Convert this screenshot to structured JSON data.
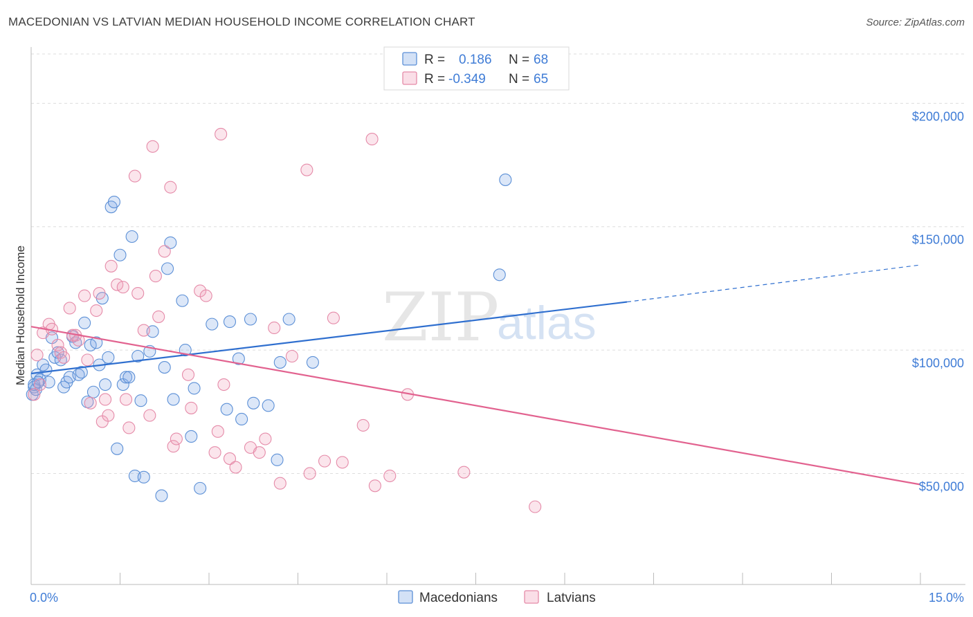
{
  "title": "MACEDONIAN VS LATVIAN MEDIAN HOUSEHOLD INCOME CORRELATION CHART",
  "source": "Source: ZipAtlas.com",
  "watermark": {
    "zip": "ZIP",
    "atlas": "atlas"
  },
  "colors": {
    "blue": "#5b8fd6",
    "blue_fill": "rgba(130,170,230,0.28)",
    "blue_line": "#2f6fcf",
    "pink": "#e58aa8",
    "pink_fill": "rgba(240,160,185,0.28)",
    "pink_line": "#e2628f",
    "tick": "#3f7cd6",
    "grid": "#dddddd"
  },
  "legend": {
    "rows": [
      {
        "r_label": "R =",
        "r_value": "0.186",
        "n_label": "N =",
        "n_value": "68"
      },
      {
        "r_label": "R =",
        "r_value": "-0.349",
        "n_label": "N =",
        "n_value": "65"
      }
    ]
  },
  "bottom_legend": [
    "Macedonians",
    "Latvians"
  ],
  "chart_data": {
    "type": "scatter",
    "title": "MACEDONIAN VS LATVIAN MEDIAN HOUSEHOLD INCOME CORRELATION CHART",
    "xlabel": "",
    "ylabel": "Median Household Income",
    "xlim": [
      0,
      15
    ],
    "ylim": [
      5000,
      220000
    ],
    "x_tick_labels": [
      "0.0%",
      "15.0%"
    ],
    "y_ticks": [
      {
        "value": 50000,
        "label": "$50,000"
      },
      {
        "value": 100000,
        "label": "$100,000"
      },
      {
        "value": 150000,
        "label": "$150,000"
      },
      {
        "value": 200000,
        "label": "$200,000"
      }
    ],
    "grid": "horizontal dashed",
    "legend_position": "top-center",
    "series": [
      {
        "name": "Macedonians",
        "r": 0.186,
        "n": 68,
        "trend": {
          "x0": 0.0,
          "y0": 90500,
          "x1": 10.05,
          "y1": 119500,
          "dashed_to_x": 15.0,
          "dashed_to_y": 134500
        },
        "points": [
          [
            0.05,
            85000
          ],
          [
            0.1,
            90000
          ],
          [
            0.15,
            88000
          ],
          [
            0.2,
            94000
          ],
          [
            0.25,
            92000
          ],
          [
            0.3,
            87000
          ],
          [
            0.35,
            105000
          ],
          [
            0.4,
            97000
          ],
          [
            0.45,
            99000
          ],
          [
            0.5,
            96000
          ],
          [
            0.55,
            85000
          ],
          [
            0.6,
            87000
          ],
          [
            0.65,
            89000
          ],
          [
            0.7,
            105500
          ],
          [
            0.75,
            103000
          ],
          [
            0.8,
            90000
          ],
          [
            0.85,
            91000
          ],
          [
            0.9,
            111000
          ],
          [
            0.95,
            79000
          ],
          [
            1.0,
            102000
          ],
          [
            1.05,
            83000
          ],
          [
            1.1,
            103000
          ],
          [
            1.15,
            94000
          ],
          [
            1.2,
            121000
          ],
          [
            1.25,
            86000
          ],
          [
            1.3,
            97000
          ],
          [
            1.35,
            158000
          ],
          [
            1.4,
            160000
          ],
          [
            1.45,
            60000
          ],
          [
            1.5,
            138500
          ],
          [
            1.55,
            86000
          ],
          [
            1.6,
            89000
          ],
          [
            1.65,
            89000
          ],
          [
            1.7,
            146000
          ],
          [
            1.75,
            49000
          ],
          [
            1.8,
            97500
          ],
          [
            1.85,
            79500
          ],
          [
            1.9,
            48500
          ],
          [
            2.0,
            99500
          ],
          [
            2.05,
            107500
          ],
          [
            2.2,
            41000
          ],
          [
            2.25,
            93000
          ],
          [
            2.3,
            133000
          ],
          [
            2.35,
            143500
          ],
          [
            2.4,
            80000
          ],
          [
            2.55,
            120000
          ],
          [
            2.6,
            100000
          ],
          [
            2.7,
            65000
          ],
          [
            2.75,
            84500
          ],
          [
            2.85,
            44000
          ],
          [
            3.05,
            110500
          ],
          [
            3.3,
            76000
          ],
          [
            3.35,
            111500
          ],
          [
            3.5,
            96500
          ],
          [
            3.55,
            72000
          ],
          [
            3.7,
            112500
          ],
          [
            3.75,
            78500
          ],
          [
            4.0,
            77500
          ],
          [
            4.15,
            55500
          ],
          [
            4.2,
            95000
          ],
          [
            4.35,
            112500
          ],
          [
            4.75,
            95000
          ],
          [
            8.0,
            169000
          ],
          [
            7.9,
            130500
          ],
          [
            0.02,
            82000
          ],
          [
            0.08,
            84000
          ],
          [
            0.05,
            86000
          ],
          [
            0.12,
            87000
          ]
        ]
      },
      {
        "name": "Latvians",
        "r": -0.349,
        "n": 65,
        "trend": {
          "x0": 0.0,
          "y0": 109500,
          "x1": 15.0,
          "y1": 45500
        },
        "points": [
          [
            0.05,
            82000
          ],
          [
            0.1,
            98000
          ],
          [
            0.15,
            86000
          ],
          [
            0.2,
            107000
          ],
          [
            0.3,
            110500
          ],
          [
            0.35,
            108500
          ],
          [
            0.45,
            102000
          ],
          [
            0.5,
            99000
          ],
          [
            0.55,
            97000
          ],
          [
            0.65,
            117000
          ],
          [
            0.7,
            106000
          ],
          [
            0.75,
            106000
          ],
          [
            0.8,
            104000
          ],
          [
            0.9,
            122000
          ],
          [
            0.95,
            96000
          ],
          [
            1.0,
            78500
          ],
          [
            1.1,
            116000
          ],
          [
            1.15,
            123000
          ],
          [
            1.2,
            71000
          ],
          [
            1.25,
            80000
          ],
          [
            1.3,
            73500
          ],
          [
            1.35,
            134000
          ],
          [
            1.45,
            126500
          ],
          [
            1.55,
            125500
          ],
          [
            1.6,
            80000
          ],
          [
            1.65,
            68500
          ],
          [
            1.75,
            170500
          ],
          [
            1.8,
            123000
          ],
          [
            1.9,
            108000
          ],
          [
            2.0,
            73500
          ],
          [
            2.05,
            182500
          ],
          [
            2.1,
            130000
          ],
          [
            2.15,
            113500
          ],
          [
            2.25,
            140000
          ],
          [
            2.35,
            166000
          ],
          [
            2.4,
            61000
          ],
          [
            2.45,
            64000
          ],
          [
            2.65,
            90000
          ],
          [
            2.7,
            76500
          ],
          [
            2.85,
            124000
          ],
          [
            2.95,
            122000
          ],
          [
            3.1,
            58500
          ],
          [
            3.15,
            67000
          ],
          [
            3.2,
            187500
          ],
          [
            3.25,
            86000
          ],
          [
            3.35,
            56000
          ],
          [
            3.45,
            52500
          ],
          [
            3.7,
            60500
          ],
          [
            3.85,
            58500
          ],
          [
            3.95,
            64000
          ],
          [
            4.1,
            109000
          ],
          [
            4.2,
            46000
          ],
          [
            4.4,
            97500
          ],
          [
            4.65,
            173000
          ],
          [
            4.7,
            50000
          ],
          [
            4.95,
            55000
          ],
          [
            5.1,
            113000
          ],
          [
            5.25,
            54500
          ],
          [
            5.6,
            69500
          ],
          [
            5.75,
            185500
          ],
          [
            5.8,
            45000
          ],
          [
            6.05,
            49000
          ],
          [
            6.35,
            82000
          ],
          [
            7.3,
            50500
          ],
          [
            8.5,
            36500
          ]
        ]
      }
    ]
  }
}
